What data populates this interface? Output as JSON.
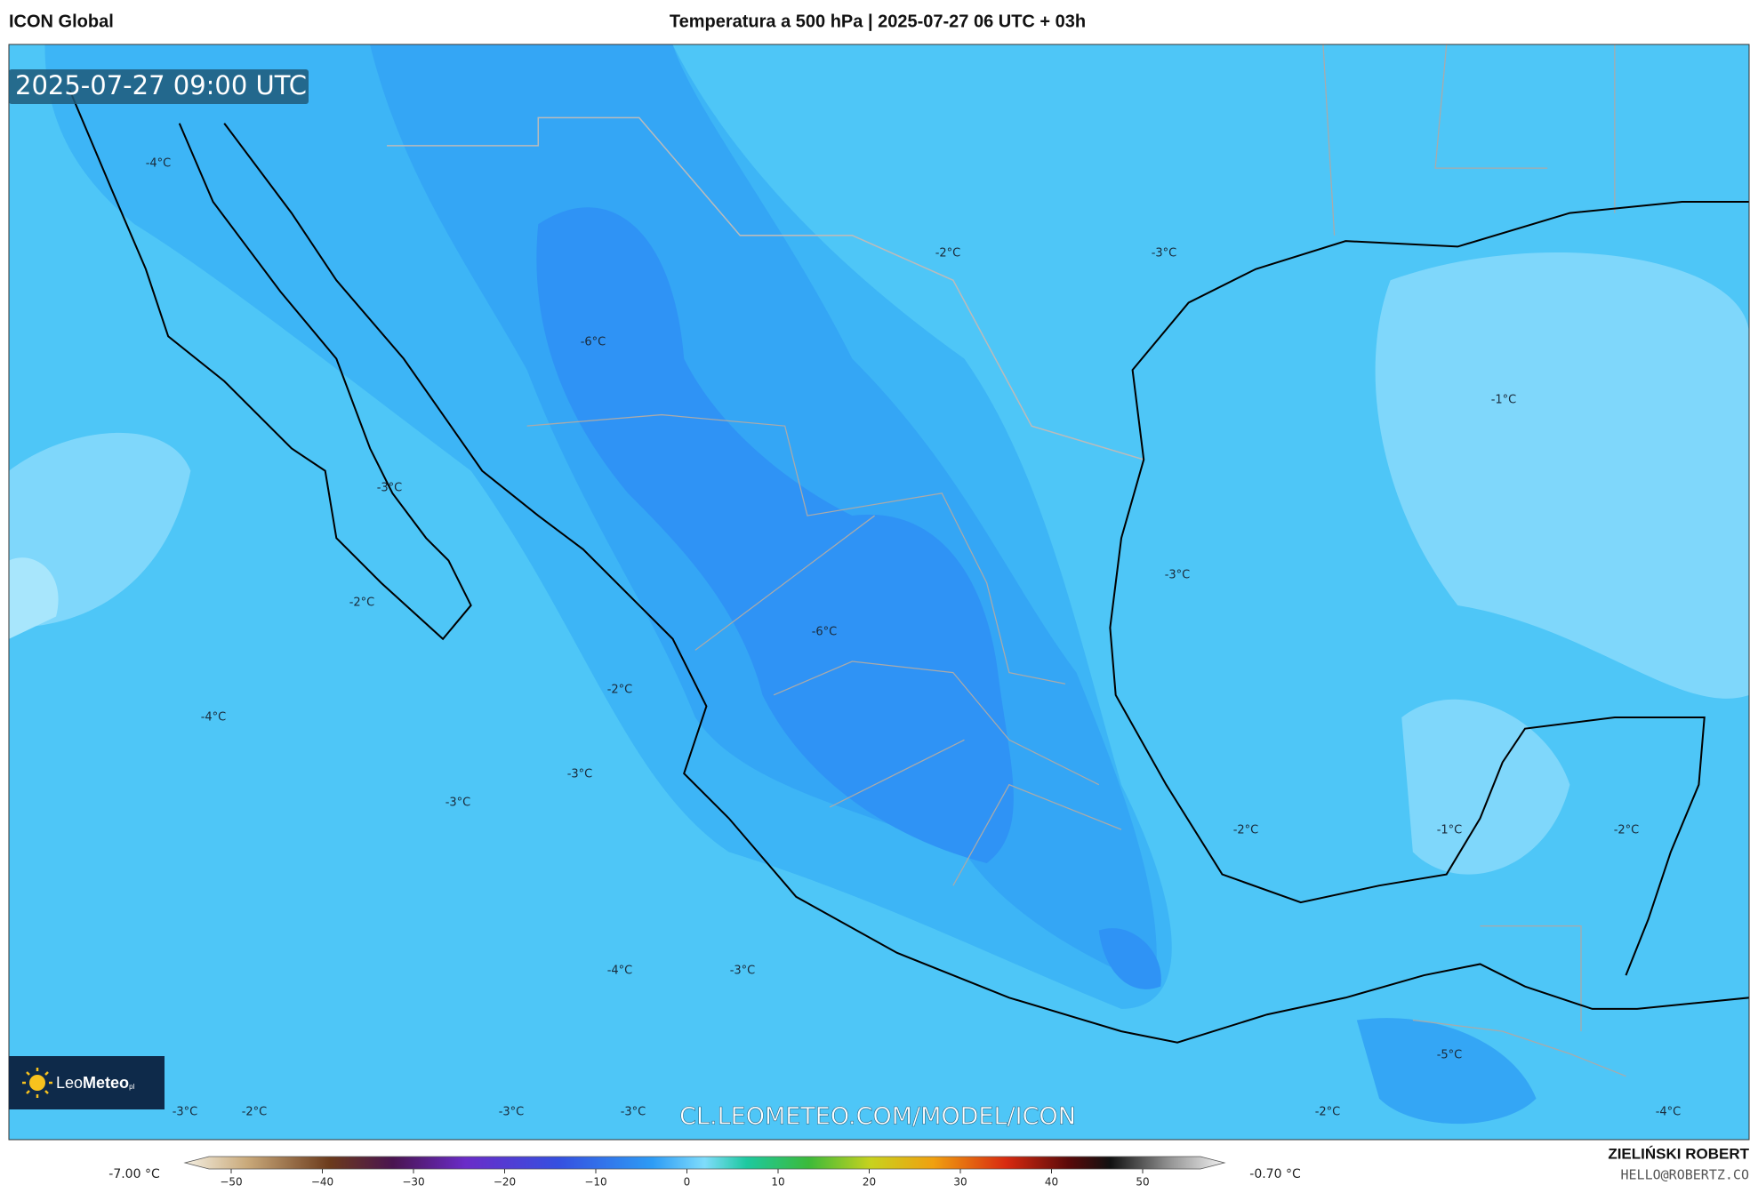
{
  "header": {
    "model": "ICON Global",
    "title": "Temperatura a 500 hPa | 2025-07-27 06 UTC + 03h"
  },
  "timestamp": "2025-07-27 09:00 UTC",
  "temperature_labels": [
    "-4°C",
    "-2°C",
    "-3°C",
    "-6°C",
    "-1°C",
    "-3°C",
    "-3°C",
    "-2°C",
    "-6°C",
    "-2°C",
    "-4°C",
    "-3°C",
    "-3°C",
    "-2°C",
    "-1°C",
    "-2°C",
    "-4°C",
    "-3°C",
    "-5°C",
    "-3°C",
    "-2°C",
    "-3°C",
    "-3°C",
    "-2°C",
    "-4°C"
  ],
  "logo": {
    "part1": "Leo",
    "part2": "Meteo",
    "suffix": "pl"
  },
  "url": "CL.LEOMETEO.COM/MODEL/ICON",
  "colorbar": {
    "min_label": "-7.00 °C",
    "max_label": "-0.70 °C",
    "ticks": [
      "−50",
      "−40",
      "−30",
      "−20",
      "−10",
      "0",
      "10",
      "20",
      "30",
      "40",
      "50"
    ]
  },
  "footer": {
    "name": "ZIELIŃSKI ROBERT",
    "email": "HELLO@ROBERTZ.CO"
  }
}
